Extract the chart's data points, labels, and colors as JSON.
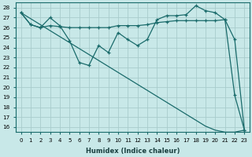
{
  "xlabel": "Humidex (Indice chaleur)",
  "bg_color": "#c8e8e8",
  "grid_color": "#a8cccc",
  "line_color": "#1a6b6b",
  "xlim": [
    -0.5,
    23.5
  ],
  "ylim": [
    15.5,
    28.5
  ],
  "yticks": [
    16,
    17,
    18,
    19,
    20,
    21,
    22,
    23,
    24,
    25,
    26,
    27,
    28
  ],
  "xticks": [
    0,
    1,
    2,
    3,
    4,
    5,
    6,
    7,
    8,
    9,
    10,
    11,
    12,
    13,
    14,
    15,
    16,
    17,
    18,
    19,
    20,
    21,
    22,
    23
  ],
  "series_with_markers": [
    [
      27.5,
      26.3,
      26.0,
      27.0,
      26.2,
      24.7,
      22.5,
      22.2,
      24.2,
      23.5,
      25.5,
      24.8,
      24.2,
      24.8,
      26.8,
      27.2,
      27.2,
      27.3,
      28.2,
      27.7,
      27.5,
      26.8,
      19.2,
      15.7
    ],
    [
      27.5,
      26.3,
      26.0,
      26.2,
      26.1,
      26.0,
      26.0,
      26.0,
      26.0,
      26.0,
      26.2,
      26.2,
      26.2,
      26.3,
      26.5,
      26.6,
      26.7,
      26.7,
      26.7,
      26.7,
      26.7,
      26.8,
      24.8,
      15.7
    ]
  ],
  "series_no_markers": [
    [
      27.5,
      26.9,
      26.3,
      25.7,
      25.1,
      24.5,
      23.9,
      23.3,
      22.7,
      22.1,
      21.5,
      20.9,
      20.3,
      19.7,
      19.1,
      18.5,
      17.9,
      17.3,
      16.7,
      16.1,
      15.7,
      15.5,
      15.5,
      15.7
    ]
  ]
}
